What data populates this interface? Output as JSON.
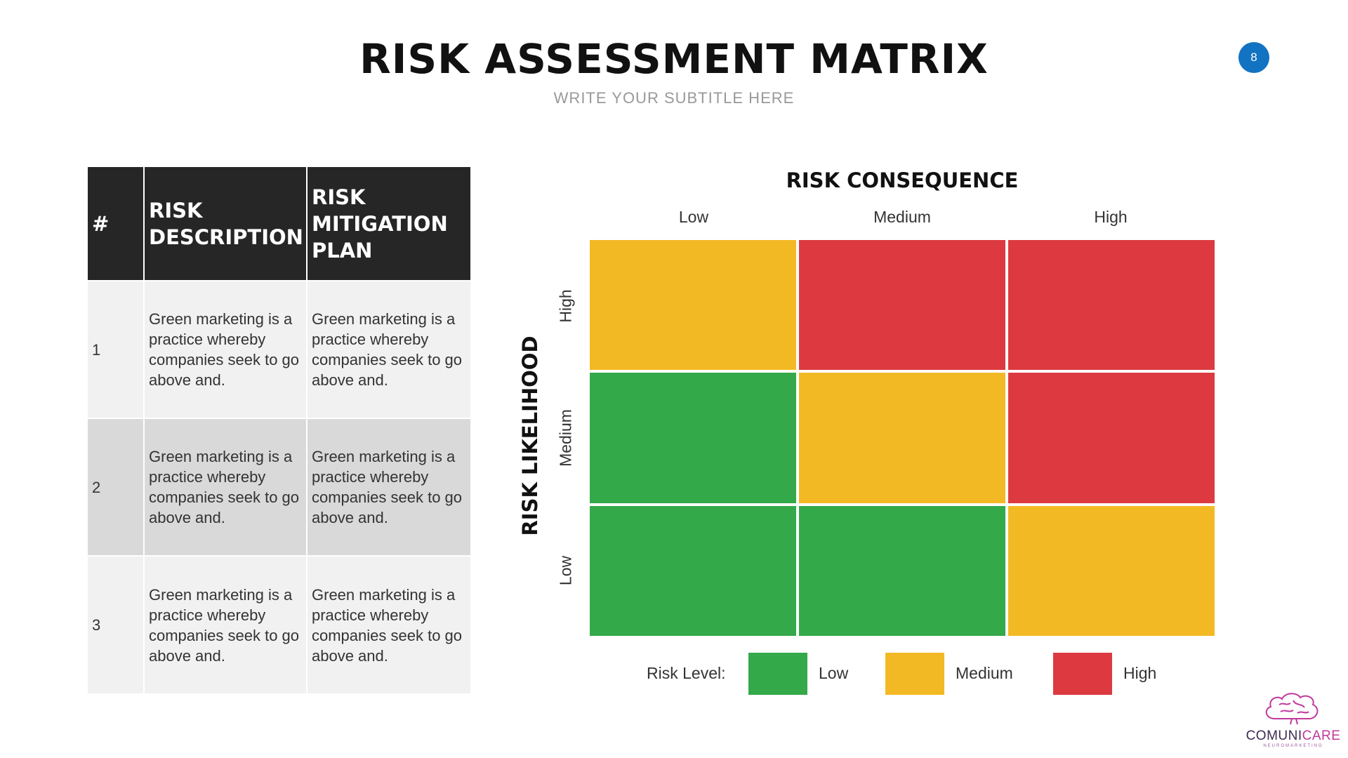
{
  "header": {
    "title": "RISK ASSESSMENT MATRIX",
    "subtitle": "WRITE YOUR SUBTITLE HERE",
    "page_number": "8"
  },
  "table": {
    "headers": [
      "#",
      "RISK DESCRIPTION",
      "RISK MITIGATION PLAN"
    ],
    "rows": [
      {
        "num": "1",
        "description": "Green marketing is a practice whereby companies seek to go above and.",
        "mitigation": "Green marketing is a practice whereby companies seek to go above and."
      },
      {
        "num": "2",
        "description": "Green marketing is a practice whereby companies seek to go above and.",
        "mitigation": "Green marketing is a practice whereby companies seek to go above and."
      },
      {
        "num": "3",
        "description": "Green marketing is a practice whereby companies seek to go above and.",
        "mitigation": "Green marketing is a practice whereby companies seek to go above and."
      }
    ]
  },
  "matrix": {
    "consequence_title": "RISK CONSEQUENCE",
    "likelihood_title": "RISK LIKELIHOOD",
    "consequence_levels": [
      "Low",
      "Medium",
      "High"
    ],
    "likelihood_levels": [
      "High",
      "Medium",
      "Low"
    ],
    "cells": [
      [
        "Medium",
        "High",
        "High"
      ],
      [
        "Low",
        "Medium",
        "High"
      ],
      [
        "Low",
        "Low",
        "Medium"
      ]
    ]
  },
  "legend": {
    "label": "Risk Level:",
    "items": [
      {
        "name": "Low",
        "color": "#33a94a"
      },
      {
        "name": "Medium",
        "color": "#f3b924"
      },
      {
        "name": "High",
        "color": "#dc3a40"
      }
    ]
  },
  "colors": {
    "Low": "#33a94a",
    "Medium": "#f3b924",
    "High": "#dc3a40",
    "header_bg": "#262626",
    "accent": "#1273c2",
    "logo_pink": "#c0399a",
    "logo_dark": "#3d2a4f"
  },
  "logo": {
    "text_part1": "COMUNI",
    "text_part2": "CARE",
    "tagline": "NEUROMARKETING"
  }
}
